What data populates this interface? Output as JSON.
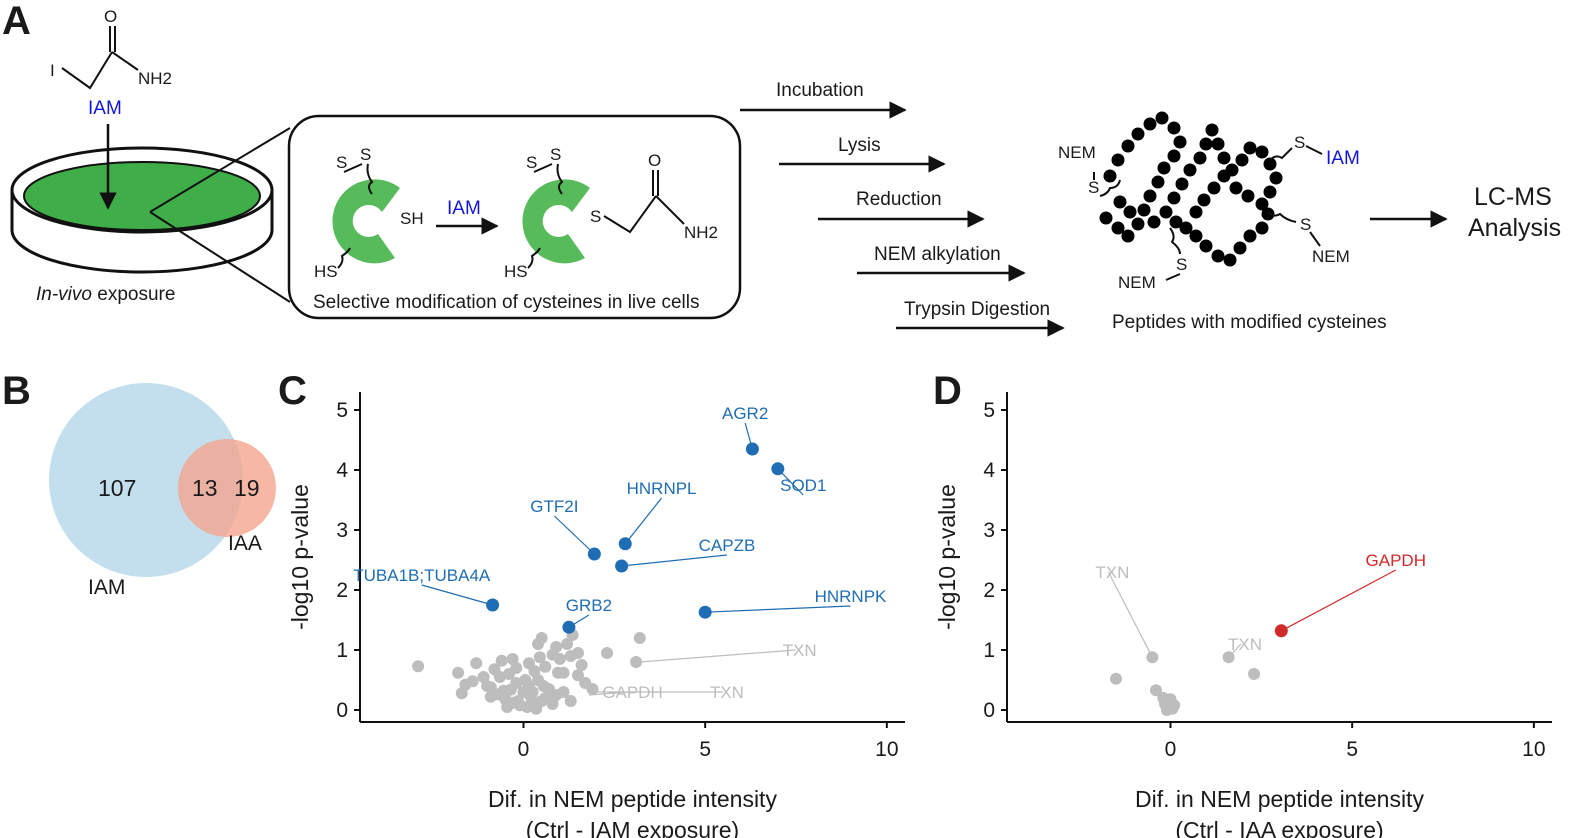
{
  "panels": {
    "a": "A",
    "b": "B",
    "c": "C",
    "d": "D"
  },
  "panel_a": {
    "reagent": "IAM",
    "atoms": {
      "iodine": "I",
      "oxygen": "O",
      "amine": "NH2",
      "sulfur": "S",
      "thiol": "SH",
      "hs": "HS"
    },
    "dish_label_italic": "In-vivo",
    "dish_label_rest": " exposure",
    "box_caption": "Selective modification of cysteines in live cells",
    "arrow_reagent": "IAM",
    "steps": [
      "Incubation",
      "Lysis",
      "Reduction",
      "NEM alkylation",
      "Trypsin Digestion"
    ],
    "peptide_labels": {
      "nem": "NEM",
      "s": "S",
      "iam": "IAM"
    },
    "peptide_caption": "Peptides with modified cysteines",
    "final_line1": "LC-MS",
    "final_line2": "Analysis"
  },
  "venn": {
    "left": {
      "label": "IAM",
      "only": "107",
      "color": "#b9d9ea"
    },
    "right": {
      "label": "IAA",
      "only": "19",
      "color": "#f4a58e"
    },
    "overlap": "13"
  },
  "chart_data": [
    {
      "type": "scatter",
      "panel": "C",
      "xlabel": "Dif. in NEM peptide intensity",
      "xlabel2": "(Ctrl - IAM exposure)",
      "ylabel": "-log10 p-value",
      "xlim": [
        -4.5,
        10.5
      ],
      "ylim": [
        -0.2,
        5.3
      ],
      "xticks": [
        0,
        5,
        10
      ],
      "yticks": [
        0,
        1,
        2,
        3,
        4,
        5
      ],
      "highlight_color": "#1f6db4",
      "background_color": "#bdbdbd",
      "highlighted": [
        {
          "name": "AGR2",
          "x": 6.3,
          "y": 4.35,
          "lx": 6.1,
          "ly": 4.85
        },
        {
          "name": "SOD1",
          "x": 7.0,
          "y": 4.02,
          "lx": 7.7,
          "ly": 3.65
        },
        {
          "name": "HNRNPL",
          "x": 2.8,
          "y": 2.77,
          "lx": 3.8,
          "ly": 3.6
        },
        {
          "name": "GTF2I",
          "x": 1.95,
          "y": 2.6,
          "lx": 0.85,
          "ly": 3.3
        },
        {
          "name": "CAPZB",
          "x": 2.7,
          "y": 2.4,
          "lx": 5.6,
          "ly": 2.65
        },
        {
          "name": "TUBA1B;TUBA4A",
          "x": -0.85,
          "y": 1.75,
          "lx": -2.8,
          "ly": 2.15
        },
        {
          "name": "GRB2",
          "x": 1.25,
          "y": 1.38,
          "lx": 1.8,
          "ly": 1.65
        },
        {
          "name": "HNRNPK",
          "x": 5.0,
          "y": 1.63,
          "lx": 9.0,
          "ly": 1.8
        }
      ],
      "labeled_background": [
        {
          "name": "TXN",
          "x": 3.2,
          "y": 0.8,
          "lx": 7.6,
          "ly": 0.9
        },
        {
          "name": "GAPDH",
          "x": 1.8,
          "y": 0.25,
          "lx": 3.0,
          "ly": 0.2
        },
        {
          "name": "TXN",
          "x": 2.0,
          "y": 0.3,
          "lx": 5.6,
          "ly": 0.2
        }
      ],
      "background": [
        [
          -2.9,
          0.73
        ],
        [
          -1.8,
          0.62
        ],
        [
          -1.6,
          0.42
        ],
        [
          -1.7,
          0.28
        ],
        [
          -1.3,
          0.78
        ],
        [
          -1.1,
          0.55
        ],
        [
          -0.9,
          0.38
        ],
        [
          -0.7,
          0.26
        ],
        [
          -0.5,
          0.18
        ],
        [
          -0.3,
          0.12
        ],
        [
          -0.1,
          0.08
        ],
        [
          0.1,
          0.05
        ],
        [
          0.3,
          0.1
        ],
        [
          0.5,
          0.15
        ],
        [
          0.2,
          0.22
        ],
        [
          0.0,
          0.3
        ],
        [
          -0.2,
          0.45
        ],
        [
          -0.4,
          0.6
        ],
        [
          -0.6,
          0.82
        ],
        [
          -0.8,
          0.68
        ],
        [
          0.4,
          0.5
        ],
        [
          0.6,
          0.72
        ],
        [
          0.8,
          0.92
        ],
        [
          0.9,
          1.05
        ],
        [
          1.0,
          0.85
        ],
        [
          1.2,
          1.1
        ],
        [
          1.3,
          0.9
        ],
        [
          1.5,
          0.95
        ],
        [
          1.6,
          0.75
        ],
        [
          0.5,
          1.2
        ],
        [
          0.4,
          1.1
        ],
        [
          -0.3,
          0.85
        ],
        [
          -1.4,
          0.48
        ],
        [
          -1.0,
          0.4
        ],
        [
          -0.55,
          0.32
        ],
        [
          0.15,
          0.4
        ],
        [
          0.7,
          0.35
        ],
        [
          0.9,
          0.25
        ],
        [
          1.1,
          0.3
        ],
        [
          1.5,
          0.58
        ],
        [
          1.7,
          0.45
        ],
        [
          1.9,
          0.35
        ],
        [
          0.6,
          0.2
        ],
        [
          -0.15,
          0.15
        ],
        [
          0.25,
          0.3
        ],
        [
          -0.65,
          0.55
        ],
        [
          1.1,
          0.62
        ],
        [
          3.2,
          1.2
        ],
        [
          3.1,
          0.8
        ],
        [
          2.3,
          0.95
        ],
        [
          0.3,
          0.65
        ],
        [
          -0.2,
          0.7
        ],
        [
          0.05,
          0.5
        ],
        [
          1.3,
          0.15
        ],
        [
          0.8,
          0.1
        ],
        [
          -0.45,
          0.05
        ],
        [
          0.35,
          0.02
        ],
        [
          0.55,
          0.4
        ],
        [
          -0.9,
          0.22
        ],
        [
          0.95,
          0.62
        ],
        [
          1.35,
          1.25
        ],
        [
          0.45,
          0.88
        ],
        [
          -0.35,
          0.34
        ],
        [
          0.15,
          0.78
        ]
      ]
    },
    {
      "type": "scatter",
      "panel": "D",
      "xlabel": "Dif. in NEM peptide intensity",
      "xlabel2": "(Ctrl - IAA exposure)",
      "ylabel": "-log10 p-value",
      "xlim": [
        -4.5,
        10.5
      ],
      "ylim": [
        -0.2,
        5.3
      ],
      "xticks": [
        0,
        5,
        10
      ],
      "yticks": [
        0,
        1,
        2,
        3,
        4,
        5
      ],
      "highlight_color": "#d12a2a",
      "background_color": "#bdbdbd",
      "highlighted": [
        {
          "name": "GAPDH",
          "x": 3.05,
          "y": 1.32,
          "lx": 6.2,
          "ly": 2.4
        }
      ],
      "labeled_background": [
        {
          "name": "TXN",
          "x": -0.5,
          "y": 0.88,
          "lx": -1.6,
          "ly": 2.2
        },
        {
          "name": "TXN",
          "x": 1.6,
          "y": 0.88,
          "lx": 2.05,
          "ly": 1.0
        }
      ],
      "background": [
        [
          -1.5,
          0.52
        ],
        [
          -0.5,
          0.88
        ],
        [
          -0.4,
          0.33
        ],
        [
          -0.2,
          0.2
        ],
        [
          -0.15,
          0.1
        ],
        [
          -0.05,
          0.05
        ],
        [
          0.0,
          0.18
        ],
        [
          0.05,
          0.02
        ],
        [
          -0.1,
          0.0
        ],
        [
          0.1,
          0.08
        ],
        [
          1.6,
          0.88
        ],
        [
          2.3,
          0.6
        ]
      ]
    }
  ]
}
